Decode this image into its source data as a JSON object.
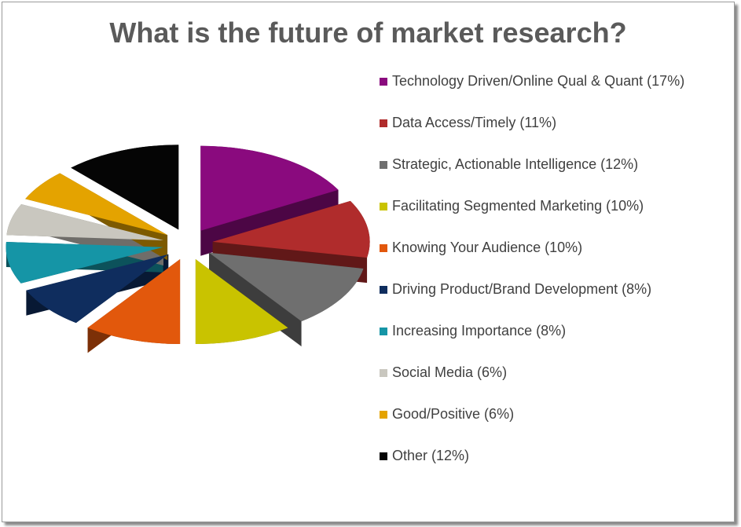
{
  "chart_data": {
    "type": "pie",
    "title": "What is the future of market research?",
    "categories": [
      "Technology Driven/Online Qual & Quant (17%)",
      "Data Access/Timely (11%)",
      "Strategic, Actionable Intelligence (12%)",
      "Facilitating Segmented Marketing (10%)",
      "Knowing Your Audience (10%)",
      "Driving Product/Brand Development (8%)",
      "Increasing Importance (8%)",
      "Social Media (6%)",
      "Good/Positive (6%)",
      "Other (12%)"
    ],
    "values": [
      17,
      11,
      12,
      10,
      10,
      8,
      8,
      6,
      6,
      12
    ],
    "colors": [
      "#8a0a7e",
      "#b02c2c",
      "#6f6f6f",
      "#c9c300",
      "#e2580c",
      "#0f2d5e",
      "#1595a6",
      "#c9c7bf",
      "#e4a300",
      "#050505"
    ],
    "legend": "right"
  }
}
